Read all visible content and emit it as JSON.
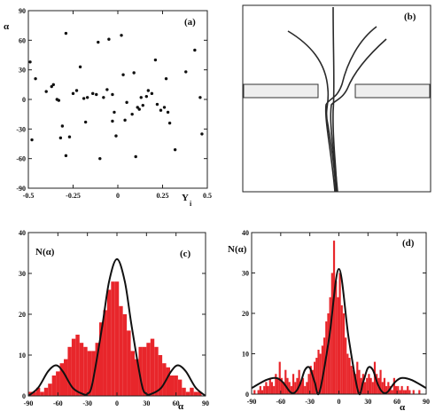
{
  "colors": {
    "axis": "#222222",
    "point": "#111111",
    "bar": "#e8262b",
    "curve": "#111111",
    "barrier": "#eeeeee",
    "trajectory": "#2a2a2a"
  },
  "chart_data": [
    {
      "id": "a",
      "type": "scatter",
      "label": "(a)",
      "xlabel": "Y",
      "xlabel_sub": "i",
      "ylabel": "α",
      "xlim": [
        -0.5,
        0.5
      ],
      "ylim": [
        -90,
        90
      ],
      "xticks": [
        "-0.5",
        "-0.25",
        "0",
        "0.25",
        "0.5"
      ],
      "xtick_values": [
        -0.5,
        -0.25,
        0,
        0.25,
        0.5
      ],
      "yticks": [
        "-90",
        "-60",
        "-30",
        "0",
        "30",
        "60",
        "90"
      ],
      "ytick_values": [
        -90,
        -60,
        -30,
        0,
        30,
        60,
        90
      ],
      "points": [
        [
          -0.49,
          38
        ],
        [
          -0.48,
          -41
        ],
        [
          -0.46,
          21
        ],
        [
          -0.4,
          8
        ],
        [
          -0.37,
          13
        ],
        [
          -0.36,
          15
        ],
        [
          -0.34,
          0
        ],
        [
          -0.33,
          -1
        ],
        [
          -0.32,
          -39
        ],
        [
          -0.31,
          -27
        ],
        [
          -0.29,
          67
        ],
        [
          -0.29,
          -57
        ],
        [
          -0.27,
          -38
        ],
        [
          -0.25,
          6
        ],
        [
          -0.23,
          9
        ],
        [
          -0.21,
          33
        ],
        [
          -0.19,
          1
        ],
        [
          -0.18,
          -23
        ],
        [
          -0.17,
          2
        ],
        [
          -0.14,
          6
        ],
        [
          -0.12,
          5
        ],
        [
          -0.11,
          58
        ],
        [
          -0.1,
          -60
        ],
        [
          -0.08,
          2
        ],
        [
          -0.06,
          10
        ],
        [
          -0.05,
          61
        ],
        [
          -0.03,
          5
        ],
        [
          -0.03,
          -22
        ],
        [
          -0.02,
          -13
        ],
        [
          -0.01,
          -37
        ],
        [
          0.02,
          65
        ],
        [
          0.03,
          25
        ],
        [
          0.04,
          -21
        ],
        [
          0.05,
          -3
        ],
        [
          0.08,
          -15
        ],
        [
          0.09,
          27
        ],
        [
          0.1,
          -58
        ],
        [
          0.11,
          -8
        ],
        [
          0.12,
          -10
        ],
        [
          0.13,
          2
        ],
        [
          0.14,
          -6
        ],
        [
          0.16,
          3
        ],
        [
          0.17,
          9
        ],
        [
          0.19,
          6
        ],
        [
          0.21,
          40
        ],
        [
          0.22,
          -5
        ],
        [
          0.24,
          -11
        ],
        [
          0.26,
          -8
        ],
        [
          0.27,
          21
        ],
        [
          0.28,
          -13
        ],
        [
          0.29,
          -24
        ],
        [
          0.32,
          -51
        ],
        [
          0.38,
          28
        ],
        [
          0.43,
          50
        ],
        [
          0.46,
          2
        ],
        [
          0.47,
          -35
        ]
      ]
    },
    {
      "id": "c",
      "type": "bar",
      "label": "(c)",
      "xlabel": "α",
      "ylabel": "N(α)",
      "xlim": [
        -90,
        90
      ],
      "ylim": [
        0,
        40
      ],
      "xticks": [
        "-90",
        "-60",
        "-30",
        "0",
        "30",
        "60",
        "90"
      ],
      "xtick_values": [
        -90,
        -60,
        -30,
        0,
        30,
        60,
        90
      ],
      "yticks": [
        "0",
        "10",
        "20",
        "30",
        "40"
      ],
      "ytick_values": [
        0,
        10,
        20,
        30,
        40
      ],
      "bin_start": -90,
      "bin_width": 4,
      "values": [
        1,
        1,
        2,
        1,
        2,
        3,
        5,
        6,
        8,
        9,
        12,
        14,
        15,
        13,
        12,
        11,
        11,
        13,
        18,
        21,
        26,
        28,
        28,
        22,
        20,
        16,
        11,
        9,
        12,
        12,
        13,
        14,
        12,
        10,
        8,
        7,
        5,
        5,
        4,
        2,
        1,
        2,
        1,
        1,
        0
      ],
      "series": [
        {
          "type": "curve",
          "x": [
            -90,
            -80,
            -70,
            -62,
            -55,
            -45,
            -35,
            -30,
            -25,
            -15,
            -8,
            0,
            8,
            15,
            25,
            30,
            35,
            45,
            55,
            62,
            70,
            80,
            90
          ],
          "y": [
            0,
            2,
            6,
            7.5,
            6,
            2,
            0.5,
            0.5,
            3,
            17,
            28,
            33.5,
            28,
            17,
            3,
            0.5,
            0.5,
            2,
            6,
            7.5,
            6,
            2,
            0
          ]
        }
      ]
    },
    {
      "id": "d",
      "type": "bar",
      "label": "(d)",
      "xlabel": "α",
      "ylabel": "N(α)",
      "xlim": [
        -90,
        90
      ],
      "ylim": [
        0,
        40
      ],
      "xticks": [
        "-90",
        "-60",
        "-30",
        "0",
        "30",
        "60",
        "90"
      ],
      "xtick_values": [
        -90,
        -60,
        -30,
        0,
        30,
        60,
        90
      ],
      "yticks": [
        "0",
        "10",
        "20",
        "30",
        "40"
      ],
      "ytick_values": [
        0,
        10,
        20,
        30,
        40
      ],
      "bin_start": -90,
      "bin_width": 2,
      "values": [
        0,
        1,
        0,
        1,
        2,
        1,
        2,
        3,
        2,
        4,
        3,
        2,
        5,
        4,
        8,
        4,
        3,
        6,
        4,
        3,
        2,
        5,
        3,
        4,
        6,
        3,
        4,
        2,
        3,
        5,
        7,
        6,
        8,
        9,
        11,
        10,
        12,
        14,
        18,
        20,
        24,
        30,
        38,
        28,
        24,
        30,
        22,
        20,
        14,
        10,
        9,
        7,
        6,
        5,
        8,
        6,
        4,
        5,
        3,
        4,
        5,
        4,
        3,
        8,
        5,
        4,
        6,
        3,
        4,
        2,
        3,
        2,
        1,
        4,
        2,
        2,
        1,
        2,
        1,
        1,
        2,
        1,
        0,
        1,
        0,
        0,
        1,
        0,
        0,
        0
      ],
      "series": [
        {
          "type": "curve",
          "x": [
            -90,
            -75,
            -65,
            -58,
            -50,
            -45,
            -40,
            -35,
            -30,
            -25,
            -20,
            -10,
            0,
            10,
            20,
            25,
            30,
            35,
            40,
            45,
            50,
            58,
            65,
            75,
            90
          ],
          "y": [
            1.5,
            3.5,
            4,
            3,
            0.5,
            0.5,
            2.5,
            6,
            6.5,
            3,
            0.5,
            14,
            31,
            14,
            0.5,
            3,
            6.5,
            6,
            2.5,
            0.5,
            0.5,
            3,
            4,
            3.5,
            1.5
          ]
        }
      ]
    }
  ],
  "panel_b": {
    "label": "(b)",
    "trajectory_count": 4
  }
}
